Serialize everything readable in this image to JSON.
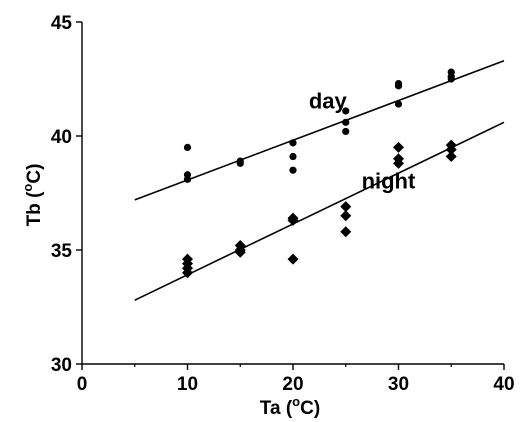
{
  "chart_data": {
    "type": "scatter",
    "title": "",
    "xlabel": {
      "pre": "Ta (",
      "sup": "o",
      "post": "C)"
    },
    "ylabel": {
      "pre": "Tb (",
      "sup": "o",
      "post": "C)"
    },
    "xlim": [
      0,
      40
    ],
    "ylim": [
      30,
      45
    ],
    "xticks": [
      0,
      10,
      20,
      30,
      40
    ],
    "yticks": [
      30,
      35,
      40,
      45
    ],
    "grid": false,
    "series": [
      {
        "name": "day",
        "marker": "circle",
        "points": [
          [
            10,
            39.5
          ],
          [
            10,
            38.3
          ],
          [
            10,
            38.1
          ],
          [
            15,
            38.9
          ],
          [
            15,
            38.8
          ],
          [
            20,
            39.7
          ],
          [
            20,
            39.1
          ],
          [
            20,
            38.5
          ],
          [
            25,
            41.1
          ],
          [
            25,
            40.6
          ],
          [
            25,
            40.2
          ],
          [
            30,
            42.3
          ],
          [
            30,
            42.2
          ],
          [
            30,
            41.4
          ],
          [
            35,
            42.8
          ],
          [
            35,
            42.6
          ],
          [
            35,
            42.5
          ]
        ],
        "fit": {
          "x": [
            5,
            40
          ],
          "y": [
            37.2,
            43.3
          ]
        }
      },
      {
        "name": "night",
        "marker": "diamond",
        "points": [
          [
            10,
            34.6
          ],
          [
            10,
            34.4
          ],
          [
            10,
            34.2
          ],
          [
            10,
            34.0
          ],
          [
            15,
            35.2
          ],
          [
            15,
            35.0
          ],
          [
            15,
            34.9
          ],
          [
            20,
            36.4
          ],
          [
            20,
            36.3
          ],
          [
            20,
            34.6
          ],
          [
            25,
            36.9
          ],
          [
            25,
            36.5
          ],
          [
            25,
            35.8
          ],
          [
            30,
            39.5
          ],
          [
            30,
            39.0
          ],
          [
            30,
            38.8
          ],
          [
            35,
            39.6
          ],
          [
            35,
            39.4
          ],
          [
            35,
            39.1
          ]
        ],
        "fit": {
          "x": [
            5,
            40
          ],
          "y": [
            32.8,
            40.6
          ]
        }
      }
    ],
    "series_label_pos": [
      {
        "x": 21.5,
        "y": 41.2
      },
      {
        "x": 26.5,
        "y": 37.7
      }
    ]
  }
}
